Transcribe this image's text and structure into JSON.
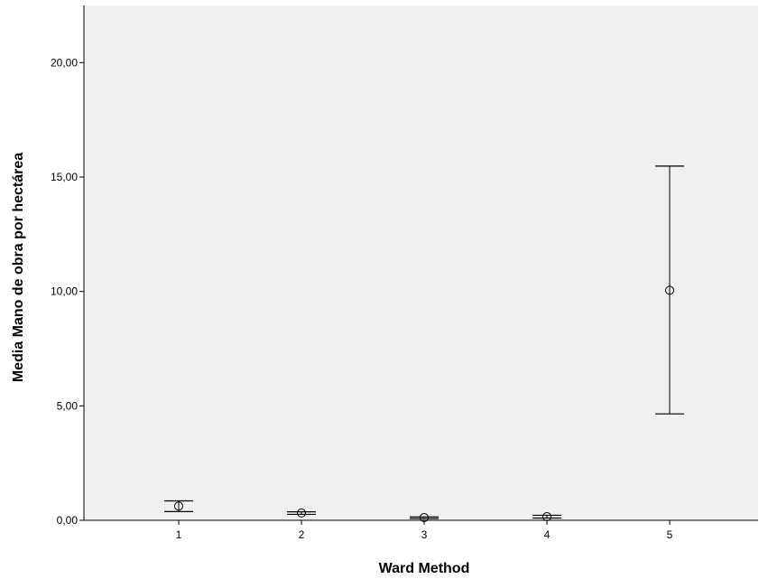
{
  "chart_data": {
    "type": "errorbar",
    "title": "",
    "xlabel": "Ward Method",
    "ylabel": "Media Mano de obra por hectárea",
    "categories": [
      "1",
      "2",
      "3",
      "4",
      "5"
    ],
    "means": [
      0.62,
      0.32,
      0.12,
      0.16,
      10.05
    ],
    "lower": [
      0.38,
      0.26,
      0.08,
      0.1,
      4.65
    ],
    "upper": [
      0.85,
      0.37,
      0.15,
      0.22,
      15.48
    ],
    "ylim": [
      0,
      22.5
    ],
    "yticks": [
      0,
      5,
      10,
      15,
      20
    ],
    "ytick_labels": [
      "0,00",
      "5,00",
      "10,00",
      "15,00",
      "20,00"
    ],
    "grid": false,
    "legend": "none",
    "colors": {
      "plot_background": "#f0f0f0",
      "marker": "#000000"
    }
  }
}
